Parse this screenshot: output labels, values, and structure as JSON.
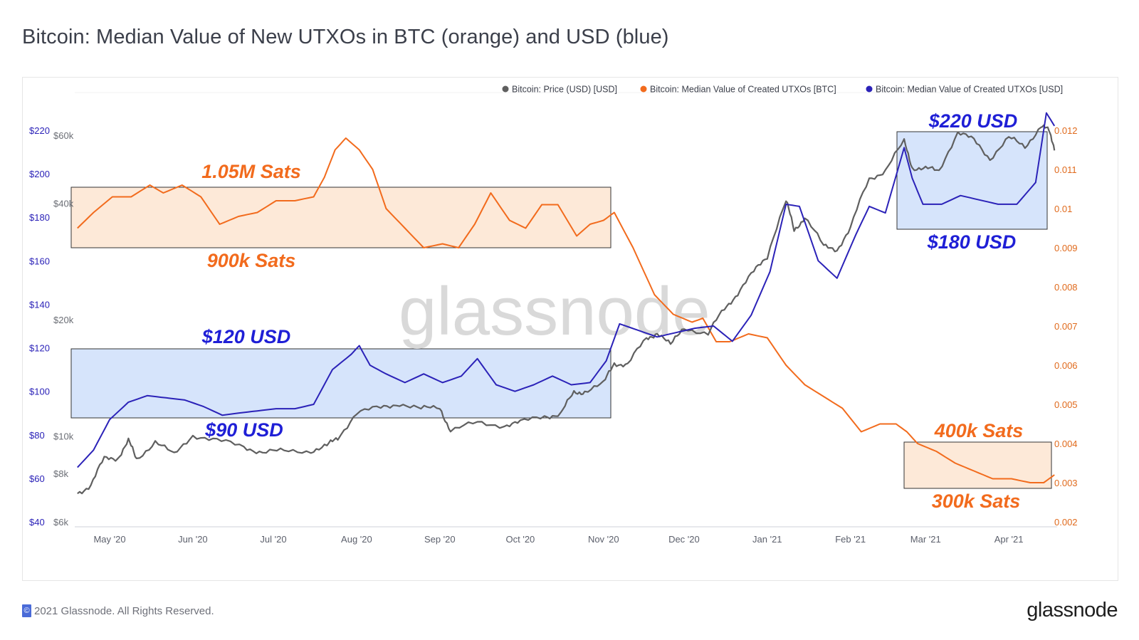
{
  "title": "Bitcoin: Median Value of New UTXOs in BTC (orange) and USD (blue)",
  "footer": {
    "copyright": "2021 Glassnode. All Rights Reserved.",
    "logo": "glassnode",
    "copyright_icon": "copyright-icon"
  },
  "watermark": "glassnode",
  "colors": {
    "price": "#5f5f5f",
    "btc": "#f26b1d",
    "usd": "#2b22b8",
    "box_orange": "#fde9d8",
    "box_blue": "#d6e4fb",
    "anno_orange": "#f26b1d",
    "anno_blue": "#1f1fd6",
    "left_axis": "#2b22b8",
    "right_axis": "#e06a1c"
  },
  "chart_data": {
    "type": "line",
    "legend_position": "top-right",
    "x_ticks": [
      "May '20",
      "Jun '20",
      "Jul '20",
      "Aug '20",
      "Sep '20",
      "Oct '20",
      "Nov '20",
      "Dec '20",
      "Jan '21",
      "Feb '21",
      "Mar '21",
      "Apr '21"
    ],
    "axes": {
      "usd_utxo": {
        "ticks": [
          "$220",
          "$200",
          "$180",
          "$160",
          "$140",
          "$120",
          "$100",
          "$80",
          "$60",
          "$40"
        ],
        "range": [
          40,
          220
        ]
      },
      "price": {
        "ticks": [
          "$60k",
          "$40k",
          "$20k",
          "$10k",
          "$8k",
          "$6k"
        ],
        "scale": "log",
        "range": [
          6000,
          60000
        ]
      },
      "btc_utxo": {
        "ticks": [
          "0.012",
          "0.011",
          "0.01",
          "0.009",
          "0.008",
          "0.007",
          "0.006",
          "0.005",
          "0.004",
          "0.003",
          "0.002"
        ],
        "range": [
          0.002,
          0.012
        ]
      }
    },
    "series": [
      {
        "name": "Bitcoin: Price (USD) [USD]",
        "axis": "price",
        "x": [
          "2020-04-19",
          "2020-04-24",
          "2020-04-29",
          "2020-05-04",
          "2020-05-08",
          "2020-05-11",
          "2020-05-18",
          "2020-05-25",
          "2020-06-01",
          "2020-06-10",
          "2020-06-20",
          "2020-06-27",
          "2020-07-05",
          "2020-07-15",
          "2020-07-21",
          "2020-07-25",
          "2020-08-01",
          "2020-08-10",
          "2020-08-17",
          "2020-08-25",
          "2020-09-01",
          "2020-09-05",
          "2020-09-15",
          "2020-09-25",
          "2020-10-01",
          "2020-10-10",
          "2020-10-16",
          "2020-10-21",
          "2020-10-25",
          "2020-11-01",
          "2020-11-05",
          "2020-11-10",
          "2020-11-17",
          "2020-11-21",
          "2020-11-26",
          "2020-12-01",
          "2020-12-10",
          "2020-12-16",
          "2020-12-21",
          "2020-12-27",
          "2021-01-01",
          "2021-01-08",
          "2021-01-11",
          "2021-01-15",
          "2021-01-22",
          "2021-01-27",
          "2021-02-01",
          "2021-02-08",
          "2021-02-14",
          "2021-02-21",
          "2021-02-24",
          "2021-03-01",
          "2021-03-06",
          "2021-03-13",
          "2021-03-19",
          "2021-03-25",
          "2021-04-01",
          "2021-04-07",
          "2021-04-13",
          "2021-04-16",
          "2021-04-18"
        ],
        "y": [
          7100,
          7500,
          8700,
          8800,
          9700,
          8700,
          9700,
          8900,
          10100,
          9700,
          9400,
          9100,
          9100,
          9200,
          9400,
          9900,
          11500,
          11800,
          12200,
          11700,
          11900,
          10300,
          10800,
          10700,
          10800,
          11300,
          11400,
          12900,
          13100,
          13600,
          15500,
          15300,
          17800,
          18600,
          17100,
          19200,
          18300,
          21300,
          23500,
          26500,
          29300,
          40500,
          34000,
          37000,
          30800,
          30500,
          34300,
          46200,
          48800,
          57500,
          49700,
          49000,
          48500,
          61200,
          58000,
          52400,
          58900,
          56000,
          63500,
          61300,
          56000
        ]
      },
      {
        "name": "Bitcoin: Median Value of Created UTXOs [BTC]",
        "axis": "btc_utxo",
        "x": [
          "2020-04-19",
          "2020-04-25",
          "2020-05-02",
          "2020-05-09",
          "2020-05-16",
          "2020-05-21",
          "2020-05-28",
          "2020-06-04",
          "2020-06-11",
          "2020-06-18",
          "2020-06-25",
          "2020-07-02",
          "2020-07-09",
          "2020-07-16",
          "2020-07-20",
          "2020-07-24",
          "2020-07-28",
          "2020-08-02",
          "2020-08-07",
          "2020-08-12",
          "2020-08-19",
          "2020-08-26",
          "2020-09-02",
          "2020-09-08",
          "2020-09-14",
          "2020-09-20",
          "2020-09-27",
          "2020-10-03",
          "2020-10-09",
          "2020-10-15",
          "2020-10-22",
          "2020-10-27",
          "2020-11-01",
          "2020-11-05",
          "2020-11-12",
          "2020-11-20",
          "2020-11-27",
          "2020-12-04",
          "2020-12-08",
          "2020-12-13",
          "2020-12-18",
          "2020-12-25",
          "2021-01-01",
          "2021-01-08",
          "2021-01-15",
          "2021-01-22",
          "2021-01-29",
          "2021-02-05",
          "2021-02-12",
          "2021-02-18",
          "2021-02-22",
          "2021-02-26",
          "2021-03-05",
          "2021-03-12",
          "2021-03-19",
          "2021-03-26",
          "2021-04-02",
          "2021-04-09",
          "2021-04-14",
          "2021-04-18"
        ],
        "y": [
          0.0095,
          0.0099,
          0.0103,
          0.0103,
          0.0106,
          0.0104,
          0.0106,
          0.0103,
          0.0096,
          0.0098,
          0.0099,
          0.0102,
          0.0102,
          0.0103,
          0.0108,
          0.0115,
          0.0118,
          0.0115,
          0.011,
          0.01,
          0.0095,
          0.009,
          0.0091,
          0.009,
          0.0096,
          0.0104,
          0.0097,
          0.0095,
          0.0101,
          0.0101,
          0.0093,
          0.0096,
          0.0097,
          0.0099,
          0.009,
          0.0078,
          0.0073,
          0.0071,
          0.0072,
          0.0066,
          0.0066,
          0.0068,
          0.0067,
          0.006,
          0.0055,
          0.0052,
          0.0049,
          0.0043,
          0.0045,
          0.0045,
          0.0043,
          0.004,
          0.0038,
          0.0035,
          0.0033,
          0.0031,
          0.0031,
          0.003,
          0.003,
          0.0032
        ]
      },
      {
        "name": "Bitcoin: Median Value of Created UTXOs [USD]",
        "axis": "usd_utxo",
        "x": [
          "2020-04-19",
          "2020-04-25",
          "2020-05-01",
          "2020-05-08",
          "2020-05-15",
          "2020-05-22",
          "2020-05-29",
          "2020-06-05",
          "2020-06-12",
          "2020-06-18",
          "2020-06-25",
          "2020-07-02",
          "2020-07-09",
          "2020-07-16",
          "2020-07-23",
          "2020-07-30",
          "2020-08-02",
          "2020-08-06",
          "2020-08-12",
          "2020-08-19",
          "2020-08-26",
          "2020-09-02",
          "2020-09-09",
          "2020-09-15",
          "2020-09-22",
          "2020-09-29",
          "2020-10-06",
          "2020-10-13",
          "2020-10-20",
          "2020-10-27",
          "2020-11-02",
          "2020-11-07",
          "2020-11-14",
          "2020-11-21",
          "2020-11-28",
          "2020-12-05",
          "2020-12-12",
          "2020-12-19",
          "2020-12-26",
          "2021-01-02",
          "2021-01-08",
          "2021-01-13",
          "2021-01-20",
          "2021-01-27",
          "2021-02-03",
          "2021-02-08",
          "2021-02-14",
          "2021-02-21",
          "2021-02-24",
          "2021-02-28",
          "2021-03-07",
          "2021-03-14",
          "2021-03-21",
          "2021-03-28",
          "2021-04-04",
          "2021-04-11",
          "2021-04-15",
          "2021-04-18"
        ],
        "y": [
          65,
          73,
          87,
          95,
          98,
          97,
          96,
          93,
          89,
          90,
          91,
          92,
          92,
          94,
          110,
          117,
          121,
          112,
          108,
          104,
          108,
          104,
          107,
          115,
          103,
          100,
          103,
          107,
          103,
          104,
          114,
          131,
          128,
          125,
          127,
          129,
          130,
          123,
          135,
          155,
          186,
          185,
          160,
          152,
          172,
          185,
          182,
          212,
          198,
          186,
          186,
          190,
          188,
          186,
          186,
          196,
          228,
          222
        ]
      }
    ],
    "annotations": {
      "box1_top": "1.05M Sats",
      "box1_bottom": "900k Sats",
      "box2_top": "$120 USD",
      "box2_bottom": "$90 USD",
      "box3_top": "$220 USD",
      "box3_bottom": "$180 USD",
      "box4_top": "400k Sats",
      "box4_bottom": "300k Sats"
    }
  }
}
